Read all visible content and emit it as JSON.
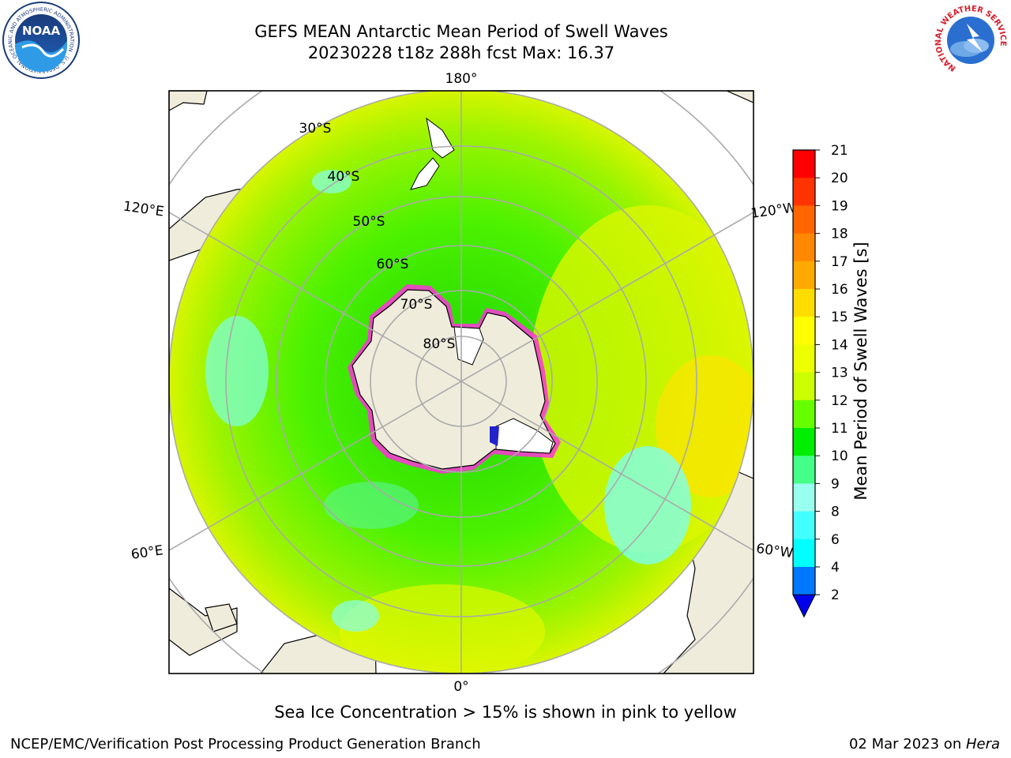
{
  "header": {
    "title_line1": "GEFS MEAN Antarctic Mean Period of Swell Waves",
    "title_line2": "20230228 t18z 288h fcst   Max: 16.37"
  },
  "logos": {
    "left": {
      "name": "noaa-logo",
      "text": "NOAA",
      "ring_text": "NATIONAL OCEANIC AND ATMOSPHERIC ADMINISTRATION · U.S. DEPARTMENT OF COMMERCE"
    },
    "right": {
      "name": "nws-logo",
      "ring_text": "NATIONAL WEATHER SERVICE"
    }
  },
  "map": {
    "projection": "south-polar-stereographic",
    "longitude_labels": {
      "top": "180°",
      "bottom": "0°",
      "upper_left": "120°E",
      "lower_left": "60°E",
      "upper_right": "120°W",
      "lower_right": "60°W"
    },
    "latitude_labels": [
      "30°S",
      "40°S",
      "50°S",
      "60°S",
      "70°S",
      "80°S"
    ],
    "colors": {
      "land": "#efecdc",
      "ice_edge": "#ff33dd",
      "antarctica_ice": "#ffffff",
      "frame": "#000000",
      "grid": "#aaaaaa"
    }
  },
  "colorbar": {
    "label": "Mean Period of Swell Waves [s]",
    "ticks": [
      "21",
      "20",
      "19",
      "18",
      "17",
      "16",
      "15",
      "14",
      "13",
      "12",
      "11",
      "10",
      "9",
      "8",
      "6",
      "4",
      "2"
    ],
    "colors": [
      "#ff0000",
      "#ff3300",
      "#ff6600",
      "#ff8800",
      "#ffaa00",
      "#ffdd00",
      "#ffff00",
      "#eeff00",
      "#ccff00",
      "#66ff00",
      "#00ee00",
      "#44ff88",
      "#99ffee",
      "#44ffff",
      "#00ffff",
      "#0077ff"
    ],
    "extend_color": "#0000ee"
  },
  "note": "Sea Ice Concentration > 15% is shown in pink to yellow",
  "footer": {
    "left": "NCEP/EMC/Verification Post Processing Product Generation Branch",
    "right_prefix": "02 Mar 2023 on ",
    "right_host": "Hera"
  }
}
